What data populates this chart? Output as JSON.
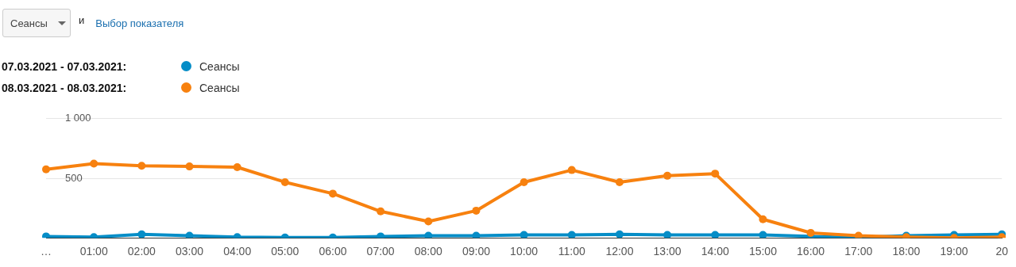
{
  "chart_data": {
    "type": "line",
    "annotations": [
      "Сеансы",
      "и",
      "Выбор показателя",
      "07.03.2021 - 07.03.2021:",
      "08.03.2021 - 08.03.2021:"
    ],
    "categories": [
      "…",
      "01:00",
      "02:00",
      "03:00",
      "04:00",
      "05:00",
      "06:00",
      "07:00",
      "08:00",
      "09:00",
      "10:00",
      "11:00",
      "12:00",
      "13:00",
      "14:00",
      "15:00",
      "16:00",
      "17:00",
      "18:00",
      "19:00",
      "20"
    ],
    "series": [
      {
        "name": "Сеансы",
        "color": "#058dc7",
        "values": [
          12,
          6,
          30,
          18,
          6,
          3,
          3,
          12,
          18,
          18,
          24,
          24,
          30,
          24,
          24,
          24,
          12,
          3,
          18,
          24,
          30
        ]
      },
      {
        "name": "Сеансы",
        "color": "#f7810f",
        "values": [
          575,
          623,
          605,
          599,
          593,
          467,
          371,
          222,
          138,
          228,
          467,
          569,
          467,
          521,
          539,
          156,
          42,
          18,
          6,
          0,
          6
        ]
      }
    ],
    "ylim": [
      0,
      1000
    ],
    "yticks": [
      500,
      {
        "value": 1000,
        "label": "1 000"
      }
    ],
    "grid": "y",
    "legend": "top left",
    "marker": "circle",
    "line_style": "solid"
  }
}
